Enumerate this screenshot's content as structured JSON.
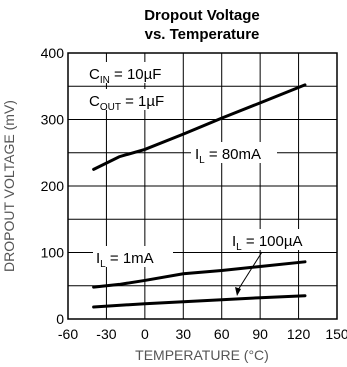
{
  "chart_data": {
    "type": "line",
    "title_lines": [
      "Dropout Voltage",
      "vs. Temperature"
    ],
    "xlabel": "TEMPERATURE (°C)",
    "ylabel": "DROPOUT VOLTAGE (mV)",
    "xlim": [
      -60,
      150
    ],
    "ylim": [
      0,
      400
    ],
    "x_ticks": [
      -60,
      -30,
      0,
      30,
      60,
      90,
      120,
      150
    ],
    "y_ticks": [
      0,
      100,
      200,
      300,
      400
    ],
    "grid": true,
    "series": [
      {
        "name": "IL = 80mA",
        "x": [
          -40,
          -20,
          0,
          30,
          60,
          90,
          125
        ],
        "y": [
          225,
          244,
          255,
          278,
          302,
          325,
          352
        ]
      },
      {
        "name": "IL = 1mA",
        "x": [
          -40,
          -20,
          0,
          30,
          60,
          90,
          125
        ],
        "y": [
          48,
          52,
          58,
          68,
          73,
          79,
          86
        ]
      },
      {
        "name": "IL = 100µA",
        "x": [
          -40,
          0,
          30,
          60,
          90,
          125
        ],
        "y": [
          18,
          23,
          26,
          29,
          32,
          35
        ]
      }
    ],
    "annotations": {
      "cin": {
        "main": "C",
        "sub": "IN",
        "rest": " = 10µF"
      },
      "cout": {
        "main": "C",
        "sub": "OUT",
        "rest": " = 1µF"
      },
      "il80": {
        "main": "I",
        "sub": "L",
        "rest": " = 80mA"
      },
      "il1": {
        "main": "I",
        "sub": "L",
        "rest": " = 1mA"
      },
      "il100": {
        "main": "I",
        "sub": "L",
        "rest": " = 100µA"
      }
    }
  }
}
